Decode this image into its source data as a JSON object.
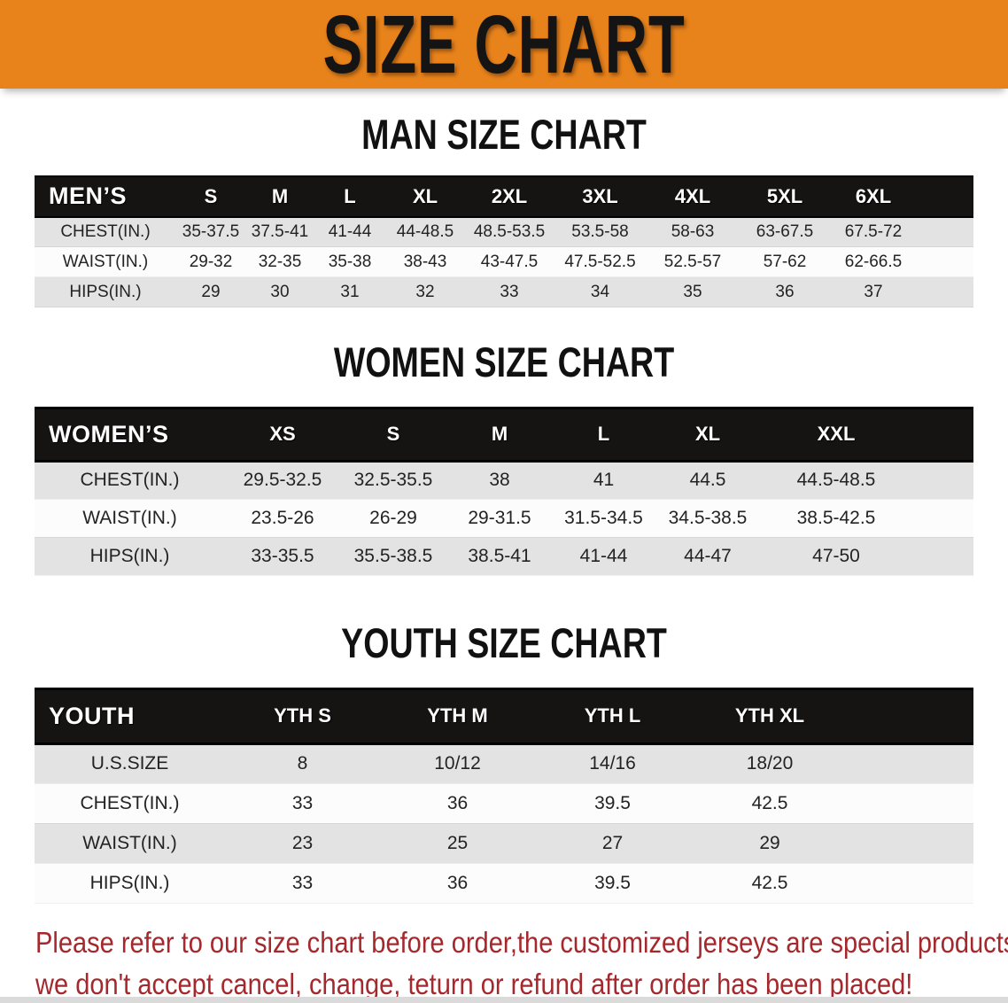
{
  "banner": {
    "title": "SIZE CHART",
    "bg_color": "#E8831B",
    "text_color": "#141414"
  },
  "sections": [
    {
      "id": "men",
      "heading": "MAN SIZE CHART",
      "table": {
        "header_label": "MEN’S",
        "columns": [
          "S",
          "M",
          "L",
          "XL",
          "2XL",
          "3XL",
          "4XL",
          "5XL",
          "6XL"
        ],
        "rows": [
          {
            "label": "CHEST(IN.)",
            "values": [
              "35-37.5",
              "37.5-41",
              "41-44",
              "44-48.5",
              "48.5-53.5",
              "53.5-58",
              "58-63",
              "63-67.5",
              "67.5-72"
            ]
          },
          {
            "label": "WAIST(IN.)",
            "values": [
              "29-32",
              "32-35",
              "35-38",
              "38-43",
              "43-47.5",
              "47.5-52.5",
              "52.5-57",
              "57-62",
              "62-66.5"
            ]
          },
          {
            "label": "HIPS(IN.)",
            "values": [
              "29",
              "30",
              "31",
              "32",
              "33",
              "34",
              "35",
              "36",
              "37"
            ]
          }
        ]
      }
    },
    {
      "id": "women",
      "heading": "WOMEN SIZE CHART",
      "table": {
        "header_label": "WOMEN’S",
        "columns": [
          "XS",
          "S",
          "M",
          "L",
          "XL",
          "XXL"
        ],
        "rows": [
          {
            "label": "CHEST(IN.)",
            "values": [
              "29.5-32.5",
              "32.5-35.5",
              "38",
              "41",
              "44.5",
              "44.5-48.5"
            ]
          },
          {
            "label": "WAIST(IN.)",
            "values": [
              "23.5-26",
              "26-29",
              "29-31.5",
              "31.5-34.5",
              "34.5-38.5",
              "38.5-42.5"
            ]
          },
          {
            "label": "HIPS(IN.)",
            "values": [
              "33-35.5",
              "35.5-38.5",
              "38.5-41",
              "41-44",
              "44-47",
              "47-50"
            ]
          }
        ]
      }
    },
    {
      "id": "youth",
      "heading": "YOUTH SIZE CHART",
      "table": {
        "header_label": "YOUTH",
        "columns": [
          "YTH S",
          "YTH M",
          "YTH L",
          "YTH XL"
        ],
        "rows": [
          {
            "label": "U.S.SIZE",
            "values": [
              "8",
              "10/12",
              "14/16",
              "18/20"
            ]
          },
          {
            "label": "CHEST(IN.)",
            "values": [
              "33",
              "36",
              "39.5",
              "42.5"
            ]
          },
          {
            "label": "WAIST(IN.)",
            "values": [
              "23",
              "25",
              "27",
              "29"
            ]
          },
          {
            "label": "HIPS(IN.)",
            "values": [
              "33",
              "36",
              "39.5",
              "42.5"
            ]
          }
        ]
      }
    }
  ],
  "footer_note": {
    "lines": [
      "Please refer to our size chart before order,the customized jerseys are special products,",
      "we don't accept cancel, change, teturn or refund after order has been placed!"
    ],
    "text_color": "#A5282C"
  },
  "style_colors": {
    "table_header_bg": "#161313",
    "row_stripe": "#E3E3E3",
    "row_alt": "#FCFCFC"
  }
}
